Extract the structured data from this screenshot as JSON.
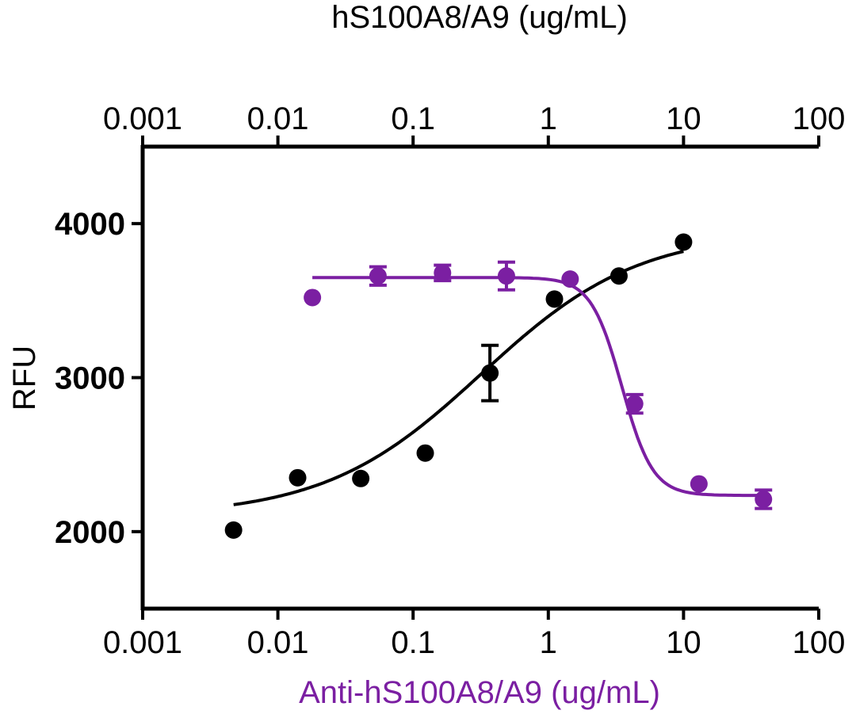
{
  "chart_data": {
    "type": "scatter",
    "title": "",
    "x_top": {
      "label": "hS100A8/A9 (ug/mL)",
      "scale": "log",
      "range": [
        0.001,
        100
      ],
      "ticks": [
        {
          "value": 0.001,
          "label": "0.001"
        },
        {
          "value": 0.01,
          "label": "0.01"
        },
        {
          "value": 0.1,
          "label": "0.1"
        },
        {
          "value": 1,
          "label": "1"
        },
        {
          "value": 10,
          "label": "10"
        },
        {
          "value": 100,
          "label": "100"
        }
      ],
      "color": "#000000"
    },
    "x_bottom": {
      "label": "Anti-hS100A8/A9 (ug/mL)",
      "scale": "log",
      "range": [
        0.001,
        100
      ],
      "ticks": [
        {
          "value": 0.001,
          "label": "0.001"
        },
        {
          "value": 0.01,
          "label": "0.01"
        },
        {
          "value": 0.1,
          "label": "0.1"
        },
        {
          "value": 1,
          "label": "1"
        },
        {
          "value": 10,
          "label": "10"
        },
        {
          "value": 100,
          "label": "100"
        }
      ],
      "color": "#7b1fa2"
    },
    "y": {
      "label": "RFU",
      "range": [
        1500,
        4500
      ],
      "ticks": [
        {
          "value": 2000,
          "label": "2000"
        },
        {
          "value": 3000,
          "label": "3000"
        },
        {
          "value": 4000,
          "label": "4000"
        }
      ]
    },
    "grid": false,
    "series": [
      {
        "axis": "top",
        "color": "#000000",
        "fit": {
          "model": "4PL",
          "bottom": 2100,
          "top": 3950,
          "ec50": 0.32,
          "hill": 0.75,
          "x_range": [
            0.0047,
            10
          ]
        },
        "points": [
          {
            "x": 0.0047,
            "y": 2010,
            "err": 0
          },
          {
            "x": 0.014,
            "y": 2350,
            "err": 0
          },
          {
            "x": 0.041,
            "y": 2345,
            "err": 0
          },
          {
            "x": 0.123,
            "y": 2510,
            "err": 0
          },
          {
            "x": 0.37,
            "y": 3030,
            "err": 180
          },
          {
            "x": 1.11,
            "y": 3510,
            "err": 0
          },
          {
            "x": 3.33,
            "y": 3660,
            "err": 0
          },
          {
            "x": 10,
            "y": 3880,
            "err": 0
          }
        ]
      },
      {
        "axis": "bottom",
        "color": "#7b1fa2",
        "fit": {
          "model": "4PL",
          "bottom": 2235,
          "top": 3650,
          "ec50": 3.5,
          "hill": -3.8,
          "x_range": [
            0.018,
            40
          ]
        },
        "points": [
          {
            "x": 0.018,
            "y": 3520,
            "err": 0
          },
          {
            "x": 0.055,
            "y": 3660,
            "err": 60
          },
          {
            "x": 0.165,
            "y": 3680,
            "err": 50
          },
          {
            "x": 0.49,
            "y": 3660,
            "err": 90
          },
          {
            "x": 1.45,
            "y": 3640,
            "err": 0
          },
          {
            "x": 4.35,
            "y": 2830,
            "err": 60
          },
          {
            "x": 13,
            "y": 2310,
            "err": 0
          },
          {
            "x": 39,
            "y": 2210,
            "err": 60
          }
        ]
      }
    ]
  }
}
